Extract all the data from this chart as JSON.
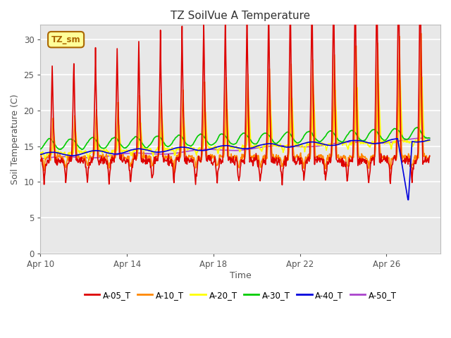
{
  "title": "TZ SoilVue A Temperature",
  "xlabel": "Time",
  "ylabel": "Soil Temperature (C)",
  "ylim": [
    0,
    32
  ],
  "yticks": [
    0,
    5,
    10,
    15,
    20,
    25,
    30
  ],
  "background_color": "#e8e8e8",
  "fig_background": "#ffffff",
  "annotation_text": "TZ_sm",
  "annotation_color": "#aa6600",
  "annotation_bg": "#ffff99",
  "annotation_border": "#aa6600",
  "series_colors": {
    "A-05_T": "#dd0000",
    "A-10_T": "#ff8800",
    "A-20_T": "#ffff00",
    "A-30_T": "#00cc00",
    "A-40_T": "#0000dd",
    "A-50_T": "#aa44cc"
  },
  "xlim": [
    9.0,
    27.5
  ],
  "xtick_labels": [
    "Apr 10",
    "Apr 14",
    "Apr 18",
    "Apr 22",
    "Apr 26"
  ],
  "xtick_positions": [
    9.0,
    13.0,
    17.0,
    21.0,
    25.0
  ]
}
